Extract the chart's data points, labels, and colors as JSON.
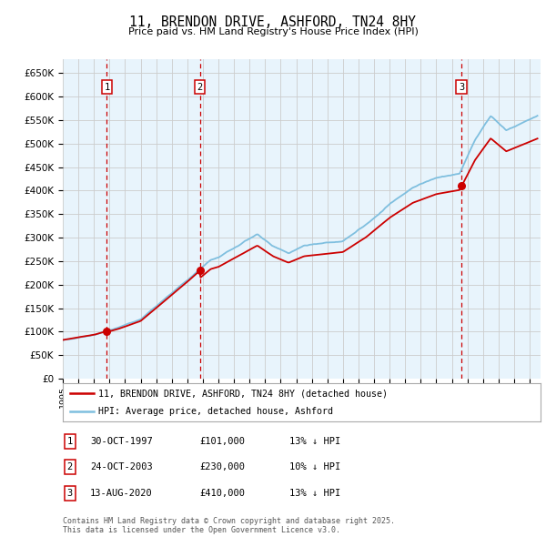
{
  "title": "11, BRENDON DRIVE, ASHFORD, TN24 8HY",
  "subtitle": "Price paid vs. HM Land Registry's House Price Index (HPI)",
  "ylabel_ticks": [
    "£0",
    "£50K",
    "£100K",
    "£150K",
    "£200K",
    "£250K",
    "£300K",
    "£350K",
    "£400K",
    "£450K",
    "£500K",
    "£550K",
    "£600K",
    "£650K"
  ],
  "ytick_vals": [
    0,
    50000,
    100000,
    150000,
    200000,
    250000,
    300000,
    350000,
    400000,
    450000,
    500000,
    550000,
    600000,
    650000
  ],
  "ylim": [
    0,
    680000
  ],
  "xlim_start": 1995.0,
  "xlim_end": 2025.7,
  "sale_dates": [
    1997.83,
    2003.81,
    2020.62
  ],
  "sale_prices": [
    101000,
    230000,
    410000
  ],
  "sale_labels": [
    "1",
    "2",
    "3"
  ],
  "legend_line1": "11, BRENDON DRIVE, ASHFORD, TN24 8HY (detached house)",
  "legend_line2": "HPI: Average price, detached house, Ashford",
  "table_rows": [
    [
      "1",
      "30-OCT-1997",
      "£101,000",
      "13% ↓ HPI"
    ],
    [
      "2",
      "24-OCT-2003",
      "£230,000",
      "10% ↓ HPI"
    ],
    [
      "3",
      "13-AUG-2020",
      "£410,000",
      "13% ↓ HPI"
    ]
  ],
  "footnote": "Contains HM Land Registry data © Crown copyright and database right 2025.\nThis data is licensed under the Open Government Licence v3.0.",
  "hpi_color": "#7fbfdf",
  "price_color": "#cc0000",
  "sale_dot_color": "#cc0000",
  "grid_color": "#cccccc",
  "background_color": "#ffffff",
  "plot_bg_color": "#e8f4fc",
  "shaded_span_color": "#cce6f7"
}
